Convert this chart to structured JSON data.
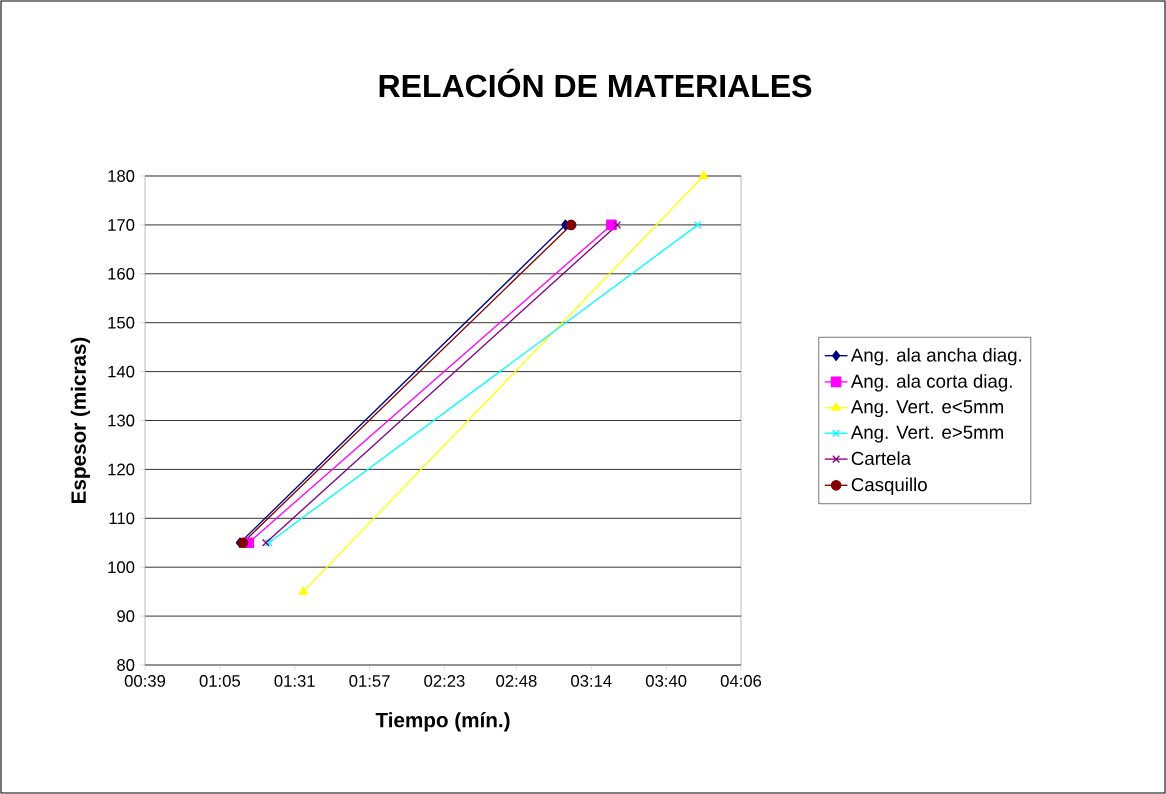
{
  "chart_data": {
    "type": "line",
    "title": "RELACIÓN DE MATERIALES",
    "xlabel": "Tiempo (mín.)",
    "ylabel": "Espesor (micras)",
    "xlim": [
      39,
      246
    ],
    "ylim": [
      80,
      180
    ],
    "xticks": [
      {
        "value": 39,
        "label": "00:39"
      },
      {
        "value": 65,
        "label": "01:05"
      },
      {
        "value": 91,
        "label": "01:31"
      },
      {
        "value": 117,
        "label": "01:57"
      },
      {
        "value": 143,
        "label": "02:23"
      },
      {
        "value": 168,
        "label": "02:48"
      },
      {
        "value": 194,
        "label": "03:14"
      },
      {
        "value": 220,
        "label": "03:40"
      },
      {
        "value": 246,
        "label": "04:06"
      }
    ],
    "yticks": [
      80,
      90,
      100,
      110,
      120,
      130,
      140,
      150,
      160,
      170,
      180
    ],
    "grid": "y",
    "legend": "right",
    "series": [
      {
        "name": "Ang. ala ancha diag.",
        "color": "#000080",
        "marker": "diamond",
        "x": [
          72,
          185
        ],
        "values": [
          105,
          170
        ]
      },
      {
        "name": "Ang. ala corta diag.",
        "color": "#ff00ff",
        "marker": "square",
        "x": [
          75,
          201
        ],
        "values": [
          105,
          170
        ]
      },
      {
        "name": "Ang. Vert. e<5mm",
        "color": "#ffff00",
        "marker": "triangle",
        "x": [
          94,
          233
        ],
        "values": [
          95,
          180
        ]
      },
      {
        "name": "Ang. Vert. e>5mm",
        "color": "#00ffff",
        "marker": "cross",
        "x": [
          82,
          231
        ],
        "values": [
          105,
          170
        ]
      },
      {
        "name": "Cartela",
        "color": "#800080",
        "marker": "cross",
        "x": [
          81,
          203
        ],
        "values": [
          105,
          170
        ]
      },
      {
        "name": "Casquillo",
        "color": "#800000",
        "marker": "circle",
        "x": [
          73,
          187
        ],
        "values": [
          105,
          170
        ]
      }
    ]
  }
}
